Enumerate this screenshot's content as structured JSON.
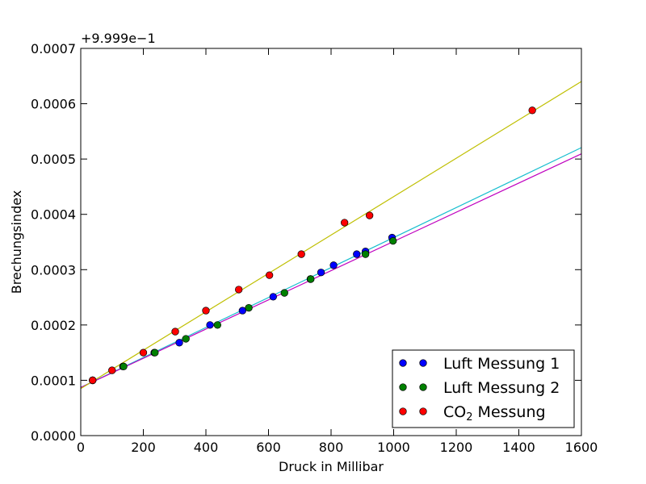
{
  "chart_data": {
    "type": "scatter",
    "title": "",
    "xlabel": "Druck in Millibar",
    "ylabel": "Brechungsindex",
    "y_offset_label": "+9.999e−1",
    "xlim": [
      0,
      1600
    ],
    "ylim": [
      0.0,
      0.0007
    ],
    "x_ticks": [
      0,
      200,
      400,
      600,
      800,
      1000,
      1200,
      1400,
      1600
    ],
    "x_tick_labels": [
      "0",
      "200",
      "400",
      "600",
      "800",
      "1000",
      "1200",
      "1400",
      "1600"
    ],
    "y_ticks": [
      0.0,
      0.0001,
      0.0002,
      0.0003,
      0.0004,
      0.0005,
      0.0006,
      0.0007
    ],
    "y_tick_labels": [
      "0.0000",
      "0.0001",
      "0.0002",
      "0.0003",
      "0.0004",
      "0.0005",
      "0.0006",
      "0.0007"
    ],
    "grid": false,
    "legend_position": "bottom-right",
    "series": [
      {
        "name": "Luft Messung 1",
        "legend_main": "Luft Messung 1",
        "legend_sub": "",
        "legend_after": "",
        "color": "#0000ff",
        "points": [
          [
            38,
            0.0001
          ],
          [
            135,
            0.000125
          ],
          [
            235,
            0.00015
          ],
          [
            315,
            0.000168
          ],
          [
            413,
            0.0002
          ],
          [
            517,
            0.000226
          ],
          [
            615,
            0.000251
          ],
          [
            734,
            0.000283
          ],
          [
            768,
            0.000295
          ],
          [
            808,
            0.000308
          ],
          [
            882,
            0.000328
          ],
          [
            910,
            0.000333
          ],
          [
            995,
            0.000358
          ]
        ],
        "fit": {
          "intercept": 8.7e-05,
          "slope": 2.71e-07,
          "color": "#17becf"
        }
      },
      {
        "name": "Luft Messung 2",
        "legend_main": "Luft Messung 2",
        "legend_sub": "",
        "legend_after": "",
        "color": "#008000",
        "points": [
          [
            38,
            0.0001
          ],
          [
            137,
            0.000125
          ],
          [
            237,
            0.00015
          ],
          [
            336,
            0.000175
          ],
          [
            437,
            0.0002
          ],
          [
            537,
            0.000231
          ],
          [
            651,
            0.000258
          ],
          [
            735,
            0.000283
          ],
          [
            910,
            0.000328
          ],
          [
            998,
            0.000352
          ]
        ],
        "fit": {
          "intercept": 8.7e-05,
          "slope": 2.64e-07,
          "color": "#bf00bf"
        }
      },
      {
        "name": "CO2 Messung",
        "legend_main": "CO",
        "legend_sub": "2",
        "legend_after": " Messung",
        "color": "#ff0000",
        "points": [
          [
            38,
            0.0001
          ],
          [
            100,
            0.000118
          ],
          [
            200,
            0.00015
          ],
          [
            302,
            0.000188
          ],
          [
            400,
            0.000226
          ],
          [
            505,
            0.000264
          ],
          [
            603,
            0.00029
          ],
          [
            705,
            0.000328
          ],
          [
            843,
            0.000385
          ],
          [
            923,
            0.000398
          ],
          [
            1443,
            0.000588
          ]
        ],
        "fit": {
          "intercept": 8.5e-05,
          "slope": 3.47e-07,
          "color": "#bfbf00"
        }
      }
    ]
  }
}
